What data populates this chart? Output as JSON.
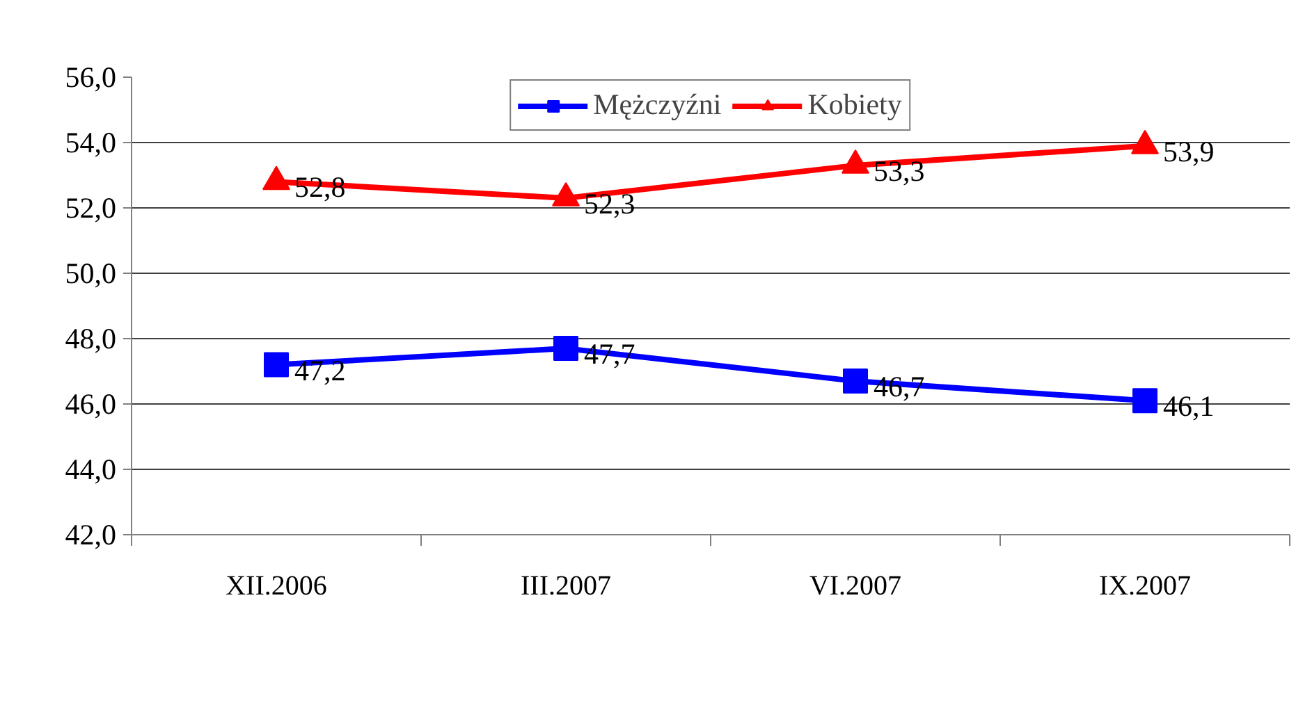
{
  "chart_data": {
    "type": "line",
    "categories": [
      "XII.2006",
      "III.2007",
      "VI.2007",
      "IX.2007"
    ],
    "series": [
      {
        "name": "Mężczyźni",
        "color": "#0000ff",
        "marker": "square",
        "values": [
          47.2,
          47.7,
          46.7,
          46.1
        ],
        "value_labels": [
          "47,2",
          "47,7",
          "46,7",
          "46,1"
        ]
      },
      {
        "name": "Kobiety",
        "color": "#ff0000",
        "marker": "triangle",
        "values": [
          52.8,
          52.3,
          53.3,
          53.9
        ],
        "value_labels": [
          "52,8",
          "52,3",
          "53,3",
          "53,9"
        ]
      }
    ],
    "ylim": [
      42,
      56
    ],
    "yticks": [
      {
        "value": 42,
        "label": "42,0"
      },
      {
        "value": 44,
        "label": "44,0"
      },
      {
        "value": 46,
        "label": "46,0"
      },
      {
        "value": 48,
        "label": "48,0"
      },
      {
        "value": 50,
        "label": "50,0"
      },
      {
        "value": 52,
        "label": "52,0"
      },
      {
        "value": 54,
        "label": "54,0"
      },
      {
        "value": 56,
        "label": "56,0"
      }
    ],
    "grid": "y",
    "legend": "top"
  }
}
